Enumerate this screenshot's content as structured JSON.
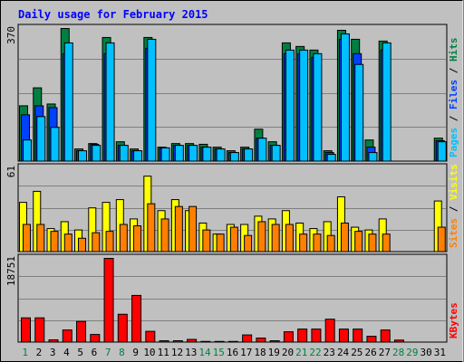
{
  "chart_data": {
    "type": "bar",
    "title": "Daily usage for February 2015",
    "colors": {
      "hits": "#00c0ff",
      "files": "#0040ff",
      "pages": "#008040",
      "visits": "#ffff00",
      "sites": "#ff8000",
      "kbytes": "#ff0000",
      "weekend_label": "#008040",
      "weekday_label": "#000000",
      "title": "#0000ff",
      "grid": "#808080",
      "background": "#c0c0c0"
    },
    "x": [
      "1",
      "2",
      "3",
      "4",
      "5",
      "6",
      "7",
      "8",
      "9",
      "10",
      "11",
      "12",
      "13",
      "14",
      "15",
      "16",
      "17",
      "18",
      "19",
      "20",
      "21",
      "22",
      "23",
      "24",
      "25",
      "26",
      "27",
      "28",
      "29",
      "30",
      "31"
    ],
    "weekend_days": [
      "1",
      "7",
      "8",
      "14",
      "15",
      "21",
      "22",
      "28",
      "29"
    ],
    "panels": [
      {
        "id": "hits-files-pages",
        "ymax_label": "370",
        "ylim": [
          0,
          370
        ],
        "ylabel_parts": [
          {
            "text": "Pages",
            "color": "#00c0ff"
          },
          {
            "text": " / ",
            "color": "#000000"
          },
          {
            "text": "Files",
            "color": "#0040ff"
          },
          {
            "text": " / ",
            "color": "#000000"
          },
          {
            "text": "Hits",
            "color": "#008040"
          }
        ],
        "series": [
          {
            "name": "Hits",
            "values": [
              155,
              205,
              160,
              370,
              35,
              50,
              345,
              55,
              35,
              345,
              40,
              50,
              50,
              48,
              40,
              30,
              40,
              90,
              55,
              330,
              320,
              310,
              30,
              365,
              340,
              60,
              335,
              0,
              0,
              0,
              65
            ]
          },
          {
            "name": "Files",
            "values": [
              130,
              155,
              150,
              300,
              30,
              48,
              300,
              45,
              30,
              315,
              38,
              45,
              45,
              40,
              35,
              25,
              35,
              65,
              45,
              300,
              300,
              290,
              25,
              340,
              300,
              40,
              310,
              0,
              0,
              0,
              58
            ]
          },
          {
            "name": "Pages",
            "values": [
              60,
              125,
              95,
              330,
              30,
              45,
              330,
              45,
              30,
              340,
              38,
              45,
              45,
              40,
              35,
              25,
              35,
              65,
              45,
              310,
              310,
              300,
              20,
              355,
              270,
              25,
              330,
              0,
              0,
              0,
              55
            ]
          }
        ]
      },
      {
        "id": "visits-sites",
        "ymax_label": "61",
        "ylim": [
          0,
          61
        ],
        "ylabel_parts": [
          {
            "text": "Sites",
            "color": "#ff8000"
          },
          {
            "text": " / ",
            "color": "#000000"
          },
          {
            "text": "Visits",
            "color": "#ffff00"
          }
        ],
        "series": [
          {
            "name": "Visits",
            "values": [
              36,
              44,
              17,
              22,
              16,
              32,
              36,
              38,
              24,
              55,
              30,
              38,
              30,
              21,
              13,
              20,
              20,
              26,
              24,
              30,
              21,
              17,
              22,
              40,
              18,
              16,
              24,
              0,
              0,
              0,
              37
            ]
          },
          {
            "name": "Sites",
            "values": [
              20,
              20,
              15,
              13,
              10,
              14,
              15,
              20,
              19,
              35,
              24,
              33,
              33,
              16,
              13,
              18,
              12,
              22,
              20,
              20,
              13,
              13,
              12,
              21,
              15,
              13,
              13,
              0,
              0,
              0,
              18
            ]
          }
        ]
      },
      {
        "id": "kbytes",
        "ymax_label": "18751",
        "ylim": [
          0,
          18751
        ],
        "ylabel_parts": [
          {
            "text": "KBytes",
            "color": "#ff0000"
          }
        ],
        "series": [
          {
            "name": "KBytes",
            "values": [
              5500,
              5500,
              600,
              2800,
              4700,
              1800,
              18751,
              6300,
              10500,
              2500,
              400,
              400,
              700,
              250,
              250,
              250,
              1700,
              1000,
              400,
              2400,
              3000,
              3000,
              5200,
              3000,
              3000,
              1400,
              2800,
              550,
              0,
              0,
              0
            ]
          }
        ]
      }
    ]
  }
}
